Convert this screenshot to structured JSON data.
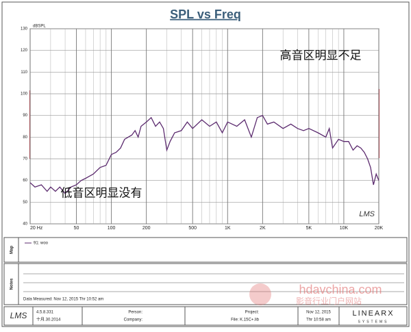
{
  "chart_data": {
    "type": "line",
    "title": "SPL vs Freq",
    "ylabel": "dBSPL",
    "log_x": true,
    "grid": true,
    "xlim": [
      20,
      20000
    ],
    "ylim": [
      40,
      130
    ],
    "xticks": [
      {
        "value": 20,
        "label": "20 Hz"
      },
      50,
      100,
      200,
      500,
      {
        "value": 1000,
        "label": "1K"
      },
      {
        "value": 2000,
        "label": "2K"
      },
      {
        "value": 5000,
        "label": "5K"
      },
      {
        "value": 10000,
        "label": "10K"
      },
      {
        "value": 20000,
        "label": "20K"
      }
    ],
    "xgrid_minor": [
      30,
      40,
      60,
      70,
      80,
      90,
      300,
      400,
      600,
      700,
      800,
      900,
      3000,
      4000,
      6000,
      7000,
      8000,
      9000
    ],
    "yticks": [
      40,
      50,
      60,
      70,
      80,
      90,
      100,
      110,
      120,
      130
    ],
    "x": [
      20,
      22,
      25,
      28,
      30,
      33,
      36,
      40,
      45,
      50,
      55,
      60,
      70,
      80,
      90,
      100,
      110,
      120,
      130,
      150,
      160,
      170,
      180,
      200,
      220,
      240,
      260,
      280,
      300,
      320,
      350,
      400,
      450,
      500,
      600,
      700,
      800,
      900,
      1000,
      1200,
      1400,
      1600,
      1800,
      2000,
      2200,
      2500,
      3000,
      3500,
      4000,
      4500,
      5000,
      6000,
      7000,
      7500,
      8000,
      9000,
      10000,
      11000,
      12000,
      13000,
      14000,
      15000,
      16000,
      17000,
      18000,
      19000,
      20000
    ],
    "series": [
      {
        "name": "91: woo",
        "color": "#5b2a6e",
        "values": [
          59,
          57,
          58,
          55,
          57,
          55,
          57,
          54,
          57,
          58,
          60,
          61,
          63,
          66,
          67,
          72,
          73,
          75,
          79,
          81,
          83,
          80,
          85,
          87,
          89,
          85,
          87,
          84,
          74,
          78,
          82,
          83,
          87,
          84,
          88,
          85,
          87,
          82,
          87,
          85,
          88,
          80,
          89,
          90,
          86,
          87,
          84,
          86,
          84,
          83,
          84,
          82,
          80,
          84,
          75,
          79,
          78,
          78,
          74,
          76,
          75,
          73,
          70,
          66,
          58,
          63,
          60
        ]
      }
    ],
    "annotations": [
      {
        "text": "低音区明显没有"
      },
      {
        "text": "高音区明显不足"
      }
    ],
    "watermark_logo": "LMS"
  },
  "panels": {
    "map": "Map",
    "notes": "Notes",
    "measured": "Data Measured: Nov 12, 2015 Thr 10:52 am"
  },
  "footer": {
    "logo": "LMS",
    "version": "4.5.8.331",
    "version_date": "十月.30.2014",
    "person": "Person:",
    "company": "Company:",
    "project": "Project:",
    "file": "File: K.15C+.lib",
    "date": "Nov 12, 2015",
    "time": "Thr 10:58 am",
    "brand": "LINEARX",
    "brand_sub": "SYSTEMS"
  },
  "watermark": {
    "site": "hdavchina.com",
    "slogan": "影音行业门户网站"
  }
}
